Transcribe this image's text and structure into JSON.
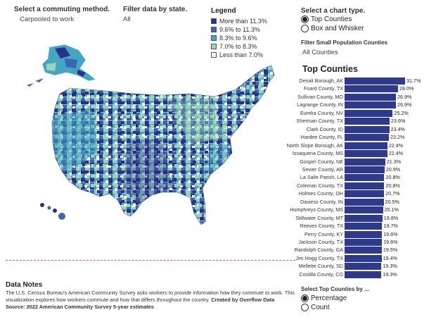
{
  "controls": {
    "commute_label": "Select a commuting method.",
    "commute_value": "Carpooled to work",
    "state_label": "Filter data by state.",
    "state_value": "All",
    "chart_type_label": "Select a chart type.",
    "chart_type_options": [
      "Top Counties",
      "Box and Whisker"
    ],
    "small_pop_label": "Filter Small Population Counties",
    "small_pop_value": "All Counties",
    "top_by_label": "Select Top Counties by ...",
    "top_by_options": [
      "Percentage",
      "Count"
    ]
  },
  "legend": {
    "title": "Legend",
    "items": [
      {
        "label": "More than 11.3%",
        "color": "#2b2f87"
      },
      {
        "label": "9.6% to 11.3%",
        "color": "#3a67b0"
      },
      {
        "label": "8.3% to 9.6%",
        "color": "#45a6c4"
      },
      {
        "label": "7.0% to 8.3%",
        "color": "#97d4b9"
      },
      {
        "label": "Less than 7.0%",
        "color": "#f7f8d0"
      }
    ]
  },
  "chart_data": {
    "type": "bar",
    "title": "Top Counties",
    "categories": [
      "Denali Borough, AK",
      "Foard County, TX",
      "Sullivan County, MO",
      "Lagrange County, IN",
      "Eureka County, NV",
      "Sherman County, TX",
      "Clark County, ID",
      "Hardee County, FL",
      "North Slope Borough, AK",
      "Issaquena County, MS",
      "Gosper County, NE",
      "Sevier County, AR",
      "La Salle Parish, LA",
      "Coleman County, TX",
      "Holmes County, OH",
      "Daviess County, IN",
      "Humphreys County, MS",
      "Stillwater County, MT",
      "Reeves County, TX",
      "Perry County, KY",
      "Jackson County, TX",
      "Randolph County, GA",
      "Jim Hogg County, TX",
      "Mellette County, SD",
      "Costilla County, CO"
    ],
    "values": [
      31.7,
      28.0,
      26.9,
      26.9,
      25.2,
      23.6,
      23.4,
      23.2,
      22.4,
      22.4,
      21.3,
      20.9,
      20.8,
      20.8,
      20.7,
      20.5,
      20.1,
      19.8,
      19.7,
      19.6,
      19.6,
      19.5,
      19.4,
      19.3,
      19.3
    ],
    "value_labels": [
      "31.7%",
      "28.0%",
      "26.9%",
      "26.9%",
      "25.2%",
      "23.6%",
      "23.4%",
      "23.2%",
      "22.4%",
      "22.4%",
      "21.3%",
      "20.9%",
      "20.8%",
      "20.8%",
      "20.7%",
      "20.5%",
      "20.1%",
      "19.8%",
      "19.7%",
      "19.6%",
      "19.6%",
      "19.5%",
      "19.4%",
      "19.3%",
      "19.3%"
    ],
    "xlim": [
      0,
      35
    ],
    "bar_color": "#2e3a8c"
  },
  "notes": {
    "title": "Data Notes",
    "line1": "The U.S. Census Bureau's American Community Survey asks workers to provide information how they commute to work. This",
    "line2": "visualization explores how workers commute and how that differs throughout the country.",
    "credit": "Created by Overflow Data",
    "source": "Source: 2022 American Community Survey 5-year estimates"
  },
  "colors": {
    "divider": "#e06060",
    "map_border": "#ffffff"
  }
}
